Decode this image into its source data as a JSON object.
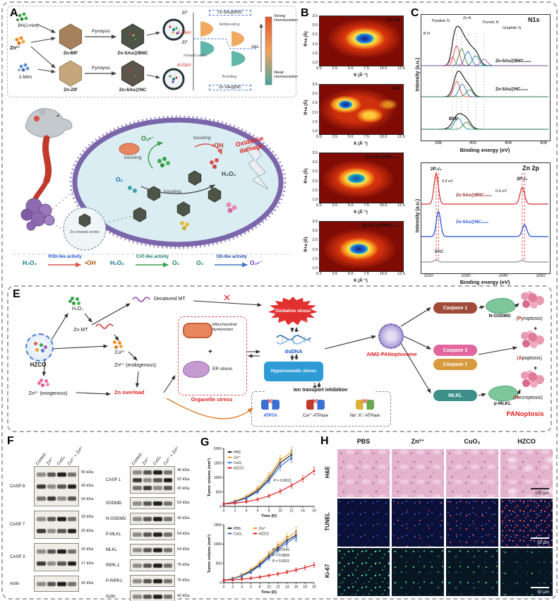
{
  "panelA": {
    "label": "A",
    "scheme": {
      "reagent_top": "BH(2-mim)",
      "zn_ion_top": "Zn²⁺",
      "reagent_bottom": "2-MIm",
      "mof_top": "Zn-BIF",
      "mof_bottom": "Zn-ZIF",
      "pyrolysis_top": "Pyrolysis",
      "pyrolysis_bottom": "Pyrolysis",
      "product_top": "Zn-SAs@BNC",
      "product_bottom": "Zn-SAs@NC",
      "ef_top": "EF",
      "ef_bottom": "EF",
      "antibonding": "Antibonding",
      "bonding": "Bonding",
      "dband": "d-band center",
      "energy_top": "-5.78eV",
      "energy_bottom": "-6.02eV",
      "dos_top_label": "Zn-SAs@BNC",
      "dos_bottom_label": "Zn-SAs@NC",
      "ads": "Ads.",
      "strong": "Strong chemisorption",
      "weak": "Weak chemisorption"
    },
    "bio": {
      "superoxide": "O₂•⁻",
      "hydroxyl": "•OH",
      "peroxide": "H₂O₂",
      "oxygen": "O₂",
      "boosting_left": "boosting",
      "boosting_right": "boosting",
      "boosting_center": "boosting",
      "oxidative_damage": "Oxidative damage",
      "inset_label": "Zn d-band center"
    },
    "activities": [
      {
        "from": "H₂O₂",
        "label": "POD-like activity",
        "to": "•OH"
      },
      {
        "from": "H₂O₂",
        "label": "CAT-like activity",
        "to": "O₂"
      },
      {
        "from": "O₂",
        "label": "OD-like activity",
        "to": "O₂•⁻"
      }
    ]
  },
  "panelB": {
    "label": "B",
    "ylabel": "R+a (Å)",
    "xlabel": "K (Å⁻¹)",
    "yticks": [
      "3.5",
      "3.0",
      "2.5",
      "2.0",
      "1.5",
      "1.0"
    ],
    "xticks": [
      "0.0",
      "2.5",
      "5.0",
      "7.5",
      "10.0",
      "12.5"
    ],
    "maps": [
      {
        "title": "Zn foil"
      },
      {
        "title": "ZnO"
      },
      {
        "title": "Zn-SAs@NC₁₀₀₀"
      },
      {
        "title": "Zn-SAs@BNC₁₀₀₀"
      }
    ]
  },
  "panelC": {
    "label": "C",
    "n1s": {
      "title": "N1s",
      "ylabel": "Intensity (a.u.)",
      "xlabel": "Binding energy (eV)",
      "xticks": [
        "396",
        "400",
        "404",
        "408"
      ],
      "peak_pyridinic": "Pyridinic N",
      "peak_bn": "B-N",
      "peak_znn": "Zn-N",
      "peak_pyrrolic": "Pyrrolic N",
      "peak_graphitic": "Graphitic N",
      "series_bnc1000": "Zn-SAs@BNC₁₀₀₀",
      "series_nc1000": "Zn-SAs@NC₁₀₀₀",
      "series_bnc": "BNC"
    },
    "zn2p": {
      "title": "Zn 2p",
      "ylabel": "Intensity (a.u.)",
      "xlabel": "Binding energy (eV)",
      "xticks": [
        "1020",
        "1030",
        "1040",
        "1050"
      ],
      "p32": "2P₃/₂",
      "p12": "2P₁/₂",
      "shift_left": "0.6 eV",
      "shift_right": "0.6 eV",
      "series_bnc1000": "Zn-SAs@BNC₁₀₀₀",
      "series_nc1000": "Zn-SAs@NC₁₀₀₀",
      "series_bnc": "BNC"
    }
  },
  "panelE": {
    "label": "E",
    "hzco": "HZCO",
    "h2o2": "H₂O₂",
    "znmt": "Zn-MT",
    "cu": "Cu²⁺",
    "denatured_mt": "Denatured MT",
    "zn_endo": "Zn²⁺ (endogenous)",
    "zn_exo": "Zn²⁺ (exogenous)",
    "zn_overload": "Zn overload",
    "mito": "Mitochondrial dysfunction",
    "plus_organelle": "+",
    "er": "ER stress",
    "organelle": "Organelle stress",
    "oxidative": "Oxidative stress",
    "o2_small": "O₂",
    "h2o2_small": "H₂O₂",
    "dsdna": "dsDNA",
    "hyperosmotic": "Hyperosmotic stress",
    "ion_title": "Ion transport inhibition",
    "atp7a": "ATP7A",
    "ca_atpase": "Ca²⁺-ATPase",
    "nak_atpase": "Na⁺,K⁺-ATPase",
    "aim2": "AIM2-PANoptosome",
    "caspase1": "Caspase 1",
    "caspase3": "Caspase 3",
    "caspase7": "Caspase 7",
    "mlkl": "MLKL",
    "ngsdmd": "N-GSDMD",
    "pmlkl": "p-MLKL",
    "pyro_pre": "(",
    "pyro_hl": "P",
    "pyro_post": "yroptosis)",
    "plus1": "+",
    "apo_pre": "(",
    "apo_hl": "A",
    "apo_post": "poptosis)",
    "plus2": "+",
    "necro_pre": "(",
    "necro_hl": "N",
    "necro_post": "ecroptosis)",
    "panoptosis": "PANoptosis"
  },
  "panelF": {
    "label": "F",
    "lanes": [
      "Control",
      "Zn²⁺",
      "CuO₂",
      "Cu²⁺ + Zn²⁺"
    ],
    "left_blots": [
      {
        "name": "CASP 8",
        "bands": [
          "55 kDa",
          "43 kDa",
          "18 kDa"
        ]
      },
      {
        "name": "CASP 7",
        "bands": [
          "33 kDa",
          "20 kDa"
        ]
      },
      {
        "name": "CASP 3",
        "bands": [
          "33 kDa",
          "17 kDa"
        ]
      },
      {
        "name": "Actin",
        "bands": [
          "42 kDa"
        ]
      }
    ],
    "right_blots": [
      {
        "name": "CASP 1",
        "bands": [
          "45 kDa",
          "22 kDa",
          "20 kDa"
        ]
      },
      {
        "name": "GSDMD",
        "bands": [
          "53 kDa"
        ]
      },
      {
        "name": "N-GSDMD",
        "bands": [
          "30 kDa"
        ]
      },
      {
        "name": "P-MLKL",
        "bands": [
          "54 kDa"
        ]
      },
      {
        "name": "MLKL",
        "bands": [
          "54 kDa"
        ]
      },
      {
        "name": "RIPK-1",
        "bands": [
          "75 kDa"
        ]
      },
      {
        "name": "P-RIPK1",
        "bands": [
          "75 kDa"
        ]
      },
      {
        "name": "Actin",
        "bands": [
          "42 kDa"
        ]
      }
    ]
  },
  "panelG": {
    "label": "G"
  },
  "chart_data": [
    {
      "type": "line",
      "xlabel": "Time (D)",
      "ylabel": "Tumor volume (mm³)",
      "xlim": [
        0,
        16
      ],
      "ylim": [
        0,
        2000
      ],
      "xticks": [
        0,
        2,
        4,
        6,
        8,
        10,
        12,
        14,
        16
      ],
      "yticks": [
        0,
        500,
        1000,
        1500,
        2000
      ],
      "annotation": "P = 0.0012",
      "legend_position": "top-left",
      "grid": false,
      "series": [
        {
          "name": "PBS",
          "color": "#1a1a1a",
          "x": [
            0,
            2,
            4,
            6,
            8,
            10,
            12
          ],
          "y": [
            80,
            160,
            300,
            550,
            950,
            1500,
            1780
          ]
        },
        {
          "name": "Zn²⁺",
          "color": "#ef9b20",
          "x": [
            0,
            2,
            4,
            6,
            8,
            10,
            12
          ],
          "y": [
            80,
            180,
            340,
            620,
            1050,
            1600,
            1870
          ]
        },
        {
          "name": "CuO₂",
          "color": "#3b6fd4",
          "x": [
            0,
            2,
            4,
            6,
            8,
            10,
            12
          ],
          "y": [
            80,
            150,
            280,
            500,
            880,
            1380,
            1680
          ]
        },
        {
          "name": "HZCO",
          "color": "#e02020",
          "x": [
            0,
            2,
            4,
            6,
            8,
            10,
            12,
            14,
            16
          ],
          "y": [
            80,
            110,
            160,
            240,
            360,
            520,
            720,
            950,
            1230
          ]
        }
      ]
    },
    {
      "type": "line",
      "xlabel": "Time (D)",
      "ylabel": "Tumor volume (mm³)",
      "xlim": [
        0,
        20
      ],
      "ylim": [
        0,
        1500
      ],
      "xticks": [
        0,
        2,
        4,
        6,
        8,
        10,
        12,
        14,
        16,
        18,
        20
      ],
      "yticks": [
        0,
        500,
        1000,
        1500
      ],
      "annotations": [
        "P = 0.0141",
        "P = 0.5820",
        "P = 0.0011"
      ],
      "legend_position": "top-left",
      "grid": false,
      "series": [
        {
          "name": "PBS",
          "color": "#1a1a1a",
          "x": [
            0,
            2,
            4,
            6,
            8,
            10,
            12,
            14,
            16
          ],
          "y": [
            60,
            100,
            180,
            300,
            470,
            690,
            900,
            1090,
            1230
          ]
        },
        {
          "name": "Zn²⁺",
          "color": "#ef9b20",
          "x": [
            0,
            2,
            4,
            6,
            8,
            10,
            12,
            14,
            16
          ],
          "y": [
            60,
            110,
            200,
            330,
            520,
            740,
            960,
            1160,
            1310
          ]
        },
        {
          "name": "CuO₂",
          "color": "#3b6fd4",
          "x": [
            0,
            2,
            4,
            6,
            8,
            10,
            12,
            14,
            16
          ],
          "y": [
            60,
            95,
            170,
            280,
            440,
            640,
            840,
            1030,
            1180
          ]
        },
        {
          "name": "HZCO",
          "color": "#e02020",
          "x": [
            0,
            2,
            4,
            6,
            8,
            10,
            12,
            14,
            16,
            18,
            20
          ],
          "y": [
            60,
            70,
            90,
            115,
            145,
            185,
            225,
            275,
            330,
            390,
            460
          ]
        }
      ]
    }
  ],
  "panelH": {
    "label": "H",
    "columns": [
      "PBS",
      "Zn²⁺",
      "CuO₂",
      "HZCO"
    ],
    "rows": [
      "H&E",
      "TUNEL",
      "Ki-67"
    ],
    "scalebars": [
      "100 μm",
      "50 μm",
      "50 μm"
    ]
  }
}
